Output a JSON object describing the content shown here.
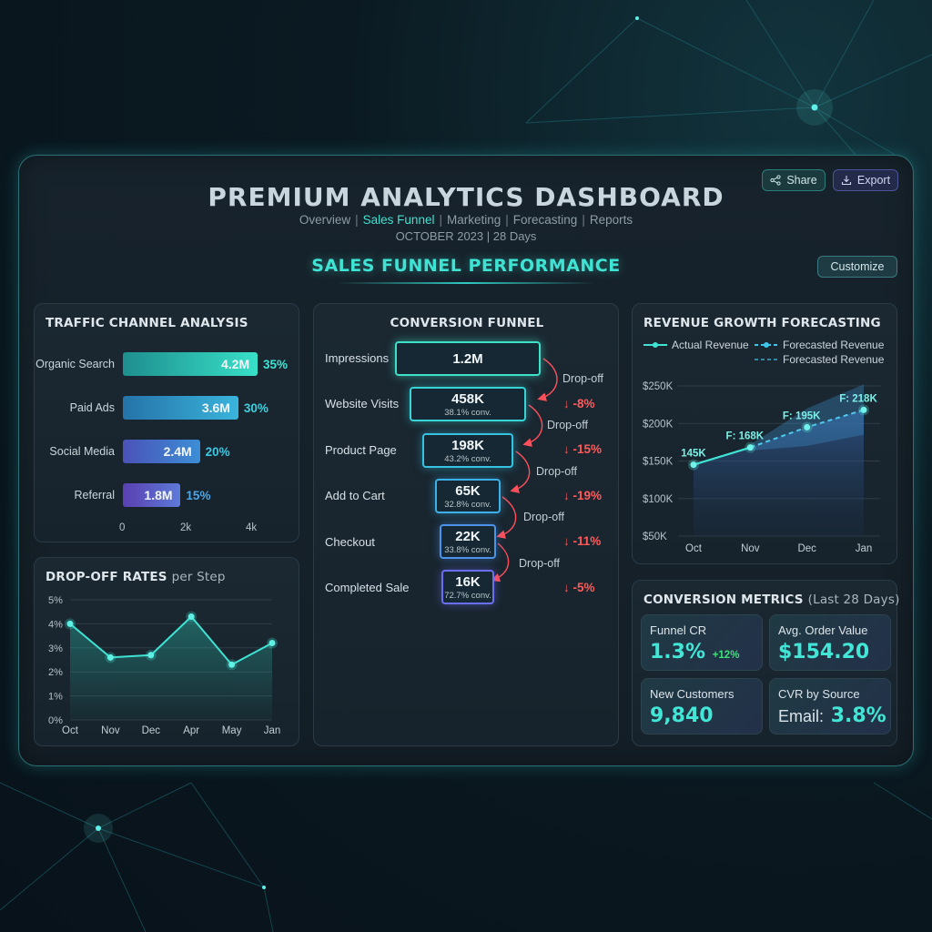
{
  "header": {
    "title": "PREMIUM ANALYTICS DASHBOARD",
    "nav": [
      "Overview",
      "Sales Funnel",
      "Marketing",
      "Forecasting",
      "Reports"
    ],
    "nav_active": "Sales Funnel",
    "date_range": "OCTOBER 2023 | 28 Days",
    "share_label": "Share",
    "export_label": "Export",
    "section_title": "SALES FUNNEL PERFORMANCE",
    "customize_label": "Customize"
  },
  "icons": {
    "share": "share-icon",
    "export": "export-icon"
  },
  "colors": {
    "accent": "#3fe3d3",
    "negative": "#ff5b5b",
    "positive": "#3ee07a",
    "bar_organic": "#2fd3bf",
    "bar_paid": "#3a9bd8",
    "bar_social": "#5a6be0",
    "bar_referral": "#6a5ad8"
  },
  "traffic": {
    "title": "TRAFFIC CHANNEL ANALYSIS",
    "chart_data": {
      "type": "bar",
      "orientation": "horizontal",
      "categories": [
        "Organic Search",
        "Paid Ads",
        "Social Media",
        "Referral"
      ],
      "values": [
        4.2,
        3.6,
        2.4,
        1.8
      ],
      "value_labels": [
        "4.2M",
        "3.6M",
        "2.4M",
        "1.8M"
      ],
      "percent_labels": [
        "35%",
        "30%",
        "20%",
        "15%"
      ],
      "x_ticks": [
        "0",
        "2k",
        "4k"
      ],
      "xlim": [
        0,
        4.2
      ]
    }
  },
  "dropoff": {
    "title": "DROP-OFF RATES",
    "title_suffix": "per Step",
    "chart_data": {
      "type": "area",
      "categories": [
        "Oct",
        "Nov",
        "Dec",
        "Apr",
        "May",
        "Jan"
      ],
      "values": [
        4.0,
        2.6,
        2.7,
        4.3,
        2.3,
        3.2
      ],
      "y_ticks": [
        "5%",
        "4%",
        "3%",
        "2%",
        "1%",
        "0%"
      ],
      "ylim": [
        0,
        5
      ],
      "grid": true
    }
  },
  "funnel": {
    "title": "CONVERSION FUNNEL",
    "chart_data": {
      "type": "funnel",
      "steps": [
        {
          "label": "Impressions",
          "value": "1.2M",
          "conv": ""
        },
        {
          "label": "Website Visits",
          "value": "458K",
          "conv": "38.1% conv."
        },
        {
          "label": "Product Page",
          "value": "198K",
          "conv": "43.2% conv."
        },
        {
          "label": "Add to Cart",
          "value": "65K",
          "conv": "32.8% conv."
        },
        {
          "label": "Checkout",
          "value": "22K",
          "conv": "33.8% conv."
        },
        {
          "label": "Completed Sale",
          "value": "16K",
          "conv": "72.7% conv."
        }
      ],
      "drop_label": "Drop-off",
      "drops": [
        "↓ -8%",
        "↓ -15%",
        "↓ -19%",
        "↓ -11%",
        "↓ -5%"
      ]
    }
  },
  "revenue": {
    "title": "REVENUE GROWTH FORECASTING",
    "legend": {
      "actual": "Actual Revenue",
      "forecast": "Forecasted Revenue",
      "forecast_band": "Forecasted Revenue"
    },
    "chart_data": {
      "type": "line",
      "categories": [
        "Oct",
        "Nov",
        "Dec",
        "Jan"
      ],
      "series": [
        {
          "name": "Actual Revenue",
          "values": [
            145,
            168,
            null,
            null
          ]
        },
        {
          "name": "Forecasted Revenue",
          "values": [
            null,
            168,
            195,
            218
          ]
        }
      ],
      "point_labels": [
        "145K",
        "F: 168K",
        "F: 195K",
        "F: 218K"
      ],
      "band_upper": [
        null,
        172,
        220,
        252
      ],
      "band_lower": [
        null,
        164,
        170,
        185
      ],
      "y_ticks": [
        "$250K",
        "$200K",
        "$150K",
        "$100K",
        "$50K"
      ],
      "ylim": [
        50,
        250
      ],
      "grid": true
    }
  },
  "metrics": {
    "title": "CONVERSION METRICS",
    "title_suffix": "(Last 28 Days)",
    "tiles": [
      {
        "label": "Funnel CR",
        "value": "1.3%",
        "delta": "+12%"
      },
      {
        "label": "Avg. Order Value",
        "value": "$154.20"
      },
      {
        "label": "New Customers",
        "value": "9,840"
      },
      {
        "label": "CVR by Source",
        "prefix": "Email:",
        "value": "3.8%"
      }
    ]
  }
}
